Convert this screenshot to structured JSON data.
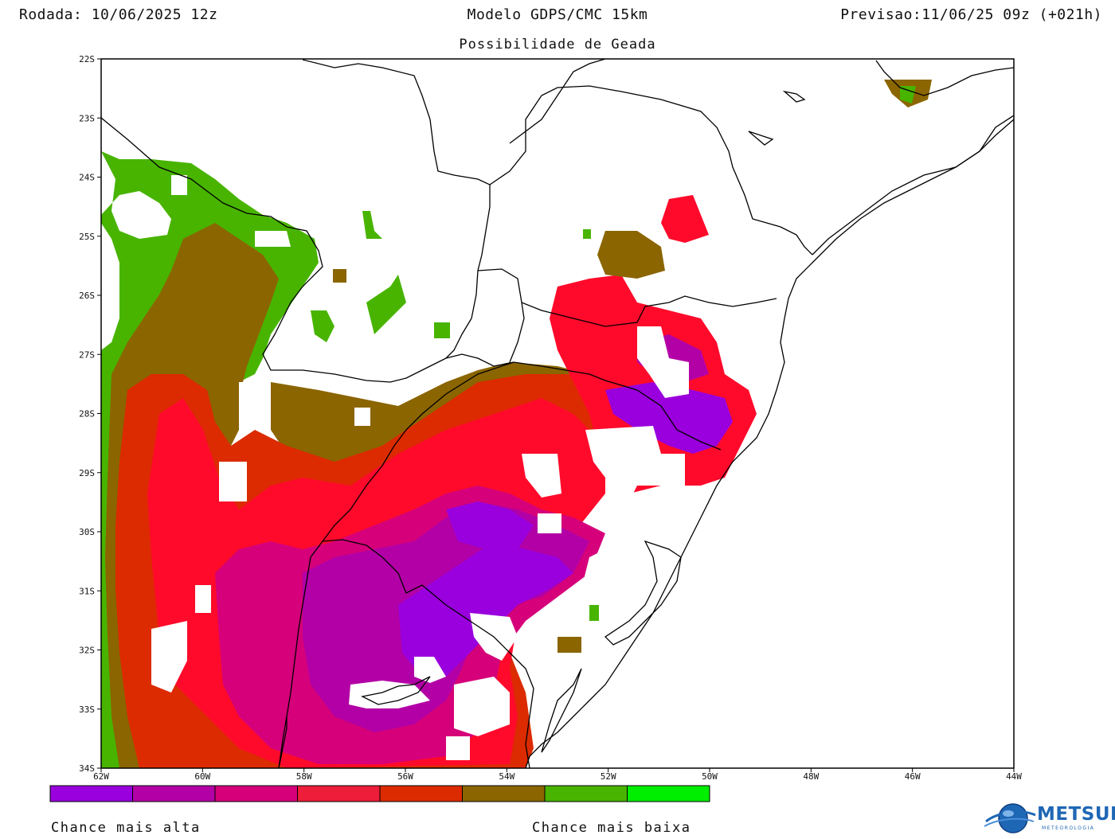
{
  "header": {
    "left": "Rodada: 10/06/2025 12z",
    "center": "Modelo GDPS/CMC 15km",
    "right": "Previsao:11/06/25 09z (+021h)"
  },
  "subtitle": "Possibilidade de Geada",
  "axes": {
    "lat_labels": [
      "22S",
      "23S",
      "24S",
      "25S",
      "26S",
      "27S",
      "28S",
      "29S",
      "30S",
      "31S",
      "32S",
      "33S",
      "34S"
    ],
    "lon_labels": [
      "62W",
      "60W",
      "58W",
      "56W",
      "54W",
      "52W",
      "50W",
      "48W",
      "46W",
      "44W"
    ]
  },
  "colors": {
    "scale": [
      "#9900dd",
      "#b300a6",
      "#d6007a",
      "#ee1e3a",
      "#ff0a2b",
      "#dc2b00",
      "#8b6500",
      "#48b400",
      "#00ee00"
    ],
    "no_frost": "#ffffff",
    "border": "#000000",
    "logo": "#1e67b5"
  },
  "legend": {
    "high_label": "Chance mais alta",
    "low_label": "Chance mais baixa"
  },
  "logo": {
    "name": "METSUL",
    "sub": "METEOROLOGIA"
  }
}
